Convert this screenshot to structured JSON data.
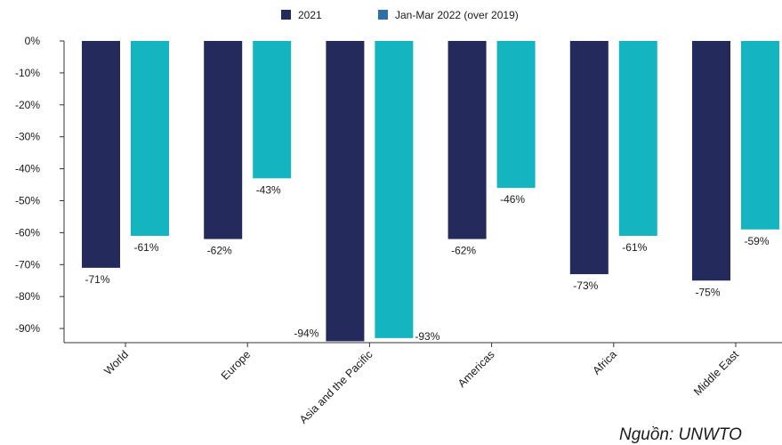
{
  "chart_data": {
    "type": "bar",
    "categories": [
      "World",
      "Europe",
      "Asia and the Pacific",
      "Americas",
      "Africa",
      "Middle East"
    ],
    "series": [
      {
        "name": "2021",
        "color": "#242a5c",
        "values": [
          -71,
          -62,
          -94,
          -62,
          -73,
          -75
        ],
        "labels": [
          "-71%",
          "-62%",
          "-94%",
          "-62%",
          "-73%",
          "-75%"
        ]
      },
      {
        "name": "Jan-Mar 2022 (over 2019)",
        "color": "#14b5c1",
        "legend_color": "#2e6fa8",
        "values": [
          -61,
          -43,
          -93,
          -46,
          -61,
          -59
        ],
        "labels": [
          "-61%",
          "-43%",
          "-93%",
          "-46%",
          "-61%",
          "-59%"
        ]
      }
    ],
    "yticks": [
      0,
      -10,
      -20,
      -30,
      -40,
      -50,
      -60,
      -70,
      -80,
      -90
    ],
    "ytick_labels": [
      "0%",
      "-10%",
      "-20%",
      "-30%",
      "-40%",
      "-50%",
      "-60%",
      "-70%",
      "-80%",
      "-90%"
    ],
    "ylim": [
      -94,
      0
    ],
    "grid": false,
    "legend_position": "top-center",
    "title": "",
    "xlabel": "",
    "ylabel": ""
  },
  "source_note": "Nguồn: UNWTO"
}
